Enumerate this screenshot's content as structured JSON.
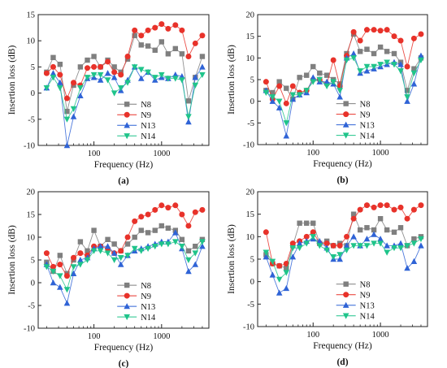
{
  "chart_data": [
    {
      "panel_label": "(a)",
      "type": "line",
      "xscale": "log",
      "xlim": [
        15,
        5000
      ],
      "ylim": [
        -10,
        15
      ],
      "xticks": [
        100,
        1000
      ],
      "yticks": [
        -10,
        -5,
        0,
        5,
        10,
        15
      ],
      "xlabel": "Frequency (Hz)",
      "ylabel": "Insertion loss (dB)",
      "legend_position": "bottom-center",
      "x": [
        20,
        25,
        31.5,
        40,
        50,
        63,
        80,
        100,
        125,
        160,
        200,
        250,
        315,
        400,
        500,
        630,
        800,
        1000,
        1250,
        1600,
        2000,
        2500,
        3150,
        4000
      ],
      "series": [
        {
          "name": "N8",
          "color": "#7f7f7f",
          "marker": "square",
          "values": [
            4.0,
            6.8,
            5.5,
            -3.5,
            1.5,
            5.0,
            6.3,
            7.0,
            5.0,
            6.3,
            5.0,
            4.0,
            6.5,
            11.0,
            9.2,
            9.0,
            8.2,
            9.8,
            7.5,
            8.5,
            7.5,
            -1.5,
            3.0,
            7.0
          ]
        },
        {
          "name": "N9",
          "color": "#e8322a",
          "marker": "circle",
          "values": [
            3.8,
            5.0,
            3.5,
            -1.0,
            2.0,
            1.5,
            4.8,
            5.0,
            5.0,
            6.0,
            4.0,
            3.5,
            7.0,
            12.0,
            11.0,
            12.0,
            12.5,
            13.2,
            12.3,
            13.0,
            12.0,
            7.0,
            9.5,
            11.0
          ]
        },
        {
          "name": "N13",
          "color": "#2f63d6",
          "marker": "triangle-up",
          "values": [
            1.0,
            3.8,
            2.0,
            -10.0,
            -4.5,
            -0.5,
            2.8,
            3.0,
            2.5,
            3.8,
            3.0,
            0.5,
            2.5,
            5.0,
            2.8,
            4.0,
            2.5,
            3.0,
            2.8,
            3.5,
            3.2,
            -5.5,
            3.0,
            5.0
          ]
        },
        {
          "name": "N14",
          "color": "#1fc48a",
          "marker": "triangle-down",
          "values": [
            1.0,
            3.0,
            1.0,
            -5.0,
            -3.0,
            1.0,
            3.0,
            3.5,
            3.5,
            2.5,
            0.0,
            1.0,
            2.0,
            5.0,
            4.5,
            4.0,
            3.0,
            3.5,
            2.8,
            2.8,
            2.5,
            -4.5,
            1.5,
            3.5
          ]
        }
      ]
    },
    {
      "panel_label": "(b)",
      "type": "line",
      "xscale": "log",
      "xlim": [
        15,
        5000
      ],
      "ylim": [
        -10,
        20
      ],
      "xticks": [
        100,
        1000
      ],
      "yticks": [
        -10,
        -5,
        0,
        5,
        10,
        15,
        20
      ],
      "xlabel": "Frequency (Hz)",
      "ylabel": "Insertion loss (dB)",
      "legend_position": "bottom-center",
      "x": [
        20,
        25,
        31.5,
        40,
        50,
        63,
        80,
        100,
        125,
        160,
        200,
        250,
        315,
        400,
        500,
        630,
        800,
        1000,
        1250,
        1600,
        2000,
        2500,
        3150,
        4000
      ],
      "series": [
        {
          "name": "N8",
          "color": "#7f7f7f",
          "marker": "square",
          "values": [
            2.5,
            2.0,
            4.5,
            3.0,
            0.5,
            5.5,
            6.0,
            8.0,
            6.5,
            6.0,
            5.0,
            4.0,
            11.0,
            15.5,
            11.5,
            12.0,
            11.0,
            12.5,
            11.5,
            11.0,
            9.0,
            2.5,
            7.5,
            10.0
          ]
        },
        {
          "name": "N9",
          "color": "#e8322a",
          "marker": "circle",
          "values": [
            4.5,
            0.5,
            3.5,
            -0.5,
            3.5,
            2.0,
            2.5,
            5.0,
            5.0,
            4.0,
            9.5,
            3.5,
            10.5,
            16.0,
            14.0,
            16.5,
            16.5,
            16.3,
            16.5,
            15.0,
            14.0,
            8.0,
            14.5,
            15.5
          ]
        },
        {
          "name": "N13",
          "color": "#2f63d6",
          "marker": "triangle-up",
          "values": [
            2.5,
            0.0,
            -1.5,
            -8.0,
            0.5,
            1.5,
            2.0,
            5.5,
            4.5,
            4.5,
            4.0,
            1.0,
            10.0,
            11.0,
            6.5,
            7.0,
            7.5,
            8.0,
            8.5,
            9.0,
            8.5,
            0.0,
            4.0,
            10.5
          ]
        },
        {
          "name": "N14",
          "color": "#1fc48a",
          "marker": "triangle-down",
          "values": [
            2.0,
            1.0,
            0.0,
            -5.0,
            1.5,
            1.5,
            2.5,
            4.5,
            5.0,
            3.5,
            4.5,
            2.5,
            9.5,
            10.0,
            7.0,
            8.0,
            8.0,
            8.5,
            9.0,
            8.5,
            7.0,
            1.0,
            6.5,
            9.5
          ]
        }
      ]
    },
    {
      "panel_label": "(c)",
      "type": "line",
      "xscale": "log",
      "xlim": [
        15,
        5000
      ],
      "ylim": [
        -10,
        20
      ],
      "xticks": [
        100,
        1000
      ],
      "yticks": [
        -10,
        -5,
        0,
        5,
        10,
        15,
        20
      ],
      "xlabel": "Frequency (Hz)",
      "ylabel": "Insertion loss (dB)",
      "legend_position": "bottom-center",
      "x": [
        20,
        25,
        31.5,
        40,
        50,
        63,
        80,
        100,
        125,
        160,
        200,
        250,
        315,
        400,
        500,
        630,
        800,
        1000,
        1250,
        1600,
        2000,
        2500,
        3150,
        4000
      ],
      "series": [
        {
          "name": "N8",
          "color": "#7f7f7f",
          "marker": "square",
          "values": [
            4.5,
            2.5,
            6.0,
            2.0,
            5.0,
            9.0,
            7.0,
            11.5,
            8.0,
            9.5,
            8.5,
            7.0,
            8.5,
            10.0,
            11.5,
            11.0,
            11.5,
            12.5,
            12.0,
            11.5,
            9.5,
            7.0,
            8.0,
            9.5
          ]
        },
        {
          "name": "N9",
          "color": "#e8322a",
          "marker": "circle",
          "values": [
            6.5,
            3.5,
            4.0,
            1.5,
            5.5,
            6.5,
            6.0,
            8.0,
            8.0,
            7.5,
            6.5,
            7.0,
            10.0,
            13.5,
            14.5,
            15.0,
            16.0,
            17.0,
            16.5,
            17.0,
            15.0,
            12.5,
            15.5,
            16.0
          ]
        },
        {
          "name": "N13",
          "color": "#2f63d6",
          "marker": "triangle-up",
          "values": [
            4.0,
            0.0,
            -1.0,
            -4.5,
            2.0,
            5.0,
            5.5,
            7.5,
            8.0,
            8.0,
            6.5,
            4.0,
            6.0,
            7.0,
            7.5,
            8.0,
            8.5,
            9.0,
            9.0,
            11.0,
            7.5,
            2.5,
            4.0,
            8.0
          ]
        },
        {
          "name": "N14",
          "color": "#1fc48a",
          "marker": "triangle-down",
          "values": [
            3.5,
            2.5,
            1.5,
            -1.5,
            3.5,
            4.0,
            5.0,
            7.0,
            7.0,
            6.5,
            5.0,
            5.5,
            6.0,
            7.5,
            7.0,
            7.5,
            8.0,
            8.5,
            8.5,
            9.0,
            8.0,
            5.0,
            6.5,
            9.0
          ]
        }
      ]
    },
    {
      "panel_label": "(d)",
      "type": "line",
      "xscale": "log",
      "xlim": [
        15,
        5000
      ],
      "ylim": [
        -10,
        20
      ],
      "xticks": [
        100,
        1000
      ],
      "yticks": [
        -10,
        -5,
        0,
        5,
        10,
        15,
        20
      ],
      "xlabel": "Frequency (Hz)",
      "ylabel": "Insertion loss (dB)",
      "legend_position": "bottom-center",
      "x": [
        20,
        25,
        31.5,
        40,
        50,
        63,
        80,
        100,
        125,
        160,
        200,
        250,
        315,
        400,
        500,
        630,
        800,
        1000,
        1250,
        1600,
        2000,
        2500,
        3150,
        4000
      ],
      "series": [
        {
          "name": "N8",
          "color": "#7f7f7f",
          "marker": "square",
          "values": [
            6.0,
            4.0,
            3.5,
            3.0,
            8.0,
            13.0,
            13.0,
            13.0,
            8.5,
            9.0,
            8.0,
            8.5,
            8.0,
            15.0,
            11.5,
            12.0,
            11.5,
            14.0,
            11.5,
            11.0,
            12.0,
            8.0,
            9.5,
            10.0
          ]
        },
        {
          "name": "N9",
          "color": "#e8322a",
          "marker": "circle",
          "values": [
            11.0,
            4.0,
            3.5,
            4.0,
            8.5,
            9.0,
            10.0,
            11.0,
            8.5,
            8.5,
            8.0,
            8.0,
            10.0,
            14.0,
            16.0,
            17.0,
            16.5,
            17.0,
            17.0,
            16.0,
            16.5,
            14.0,
            16.0,
            17.0
          ]
        },
        {
          "name": "N13",
          "color": "#2f63d6",
          "marker": "triangle-up",
          "values": [
            5.5,
            1.5,
            -2.5,
            -1.5,
            5.5,
            8.5,
            9.0,
            9.5,
            9.0,
            7.5,
            5.0,
            5.0,
            8.0,
            10.0,
            8.0,
            9.5,
            10.5,
            9.5,
            8.0,
            8.0,
            8.5,
            3.0,
            4.5,
            8.0
          ]
        },
        {
          "name": "N14",
          "color": "#1fc48a",
          "marker": "triangle-down",
          "values": [
            6.5,
            4.5,
            0.5,
            2.0,
            7.5,
            7.5,
            8.5,
            10.0,
            8.0,
            7.0,
            5.5,
            6.0,
            7.0,
            8.0,
            8.0,
            8.0,
            8.5,
            8.5,
            6.5,
            7.5,
            7.5,
            8.0,
            8.5,
            9.5
          ]
        }
      ]
    }
  ]
}
